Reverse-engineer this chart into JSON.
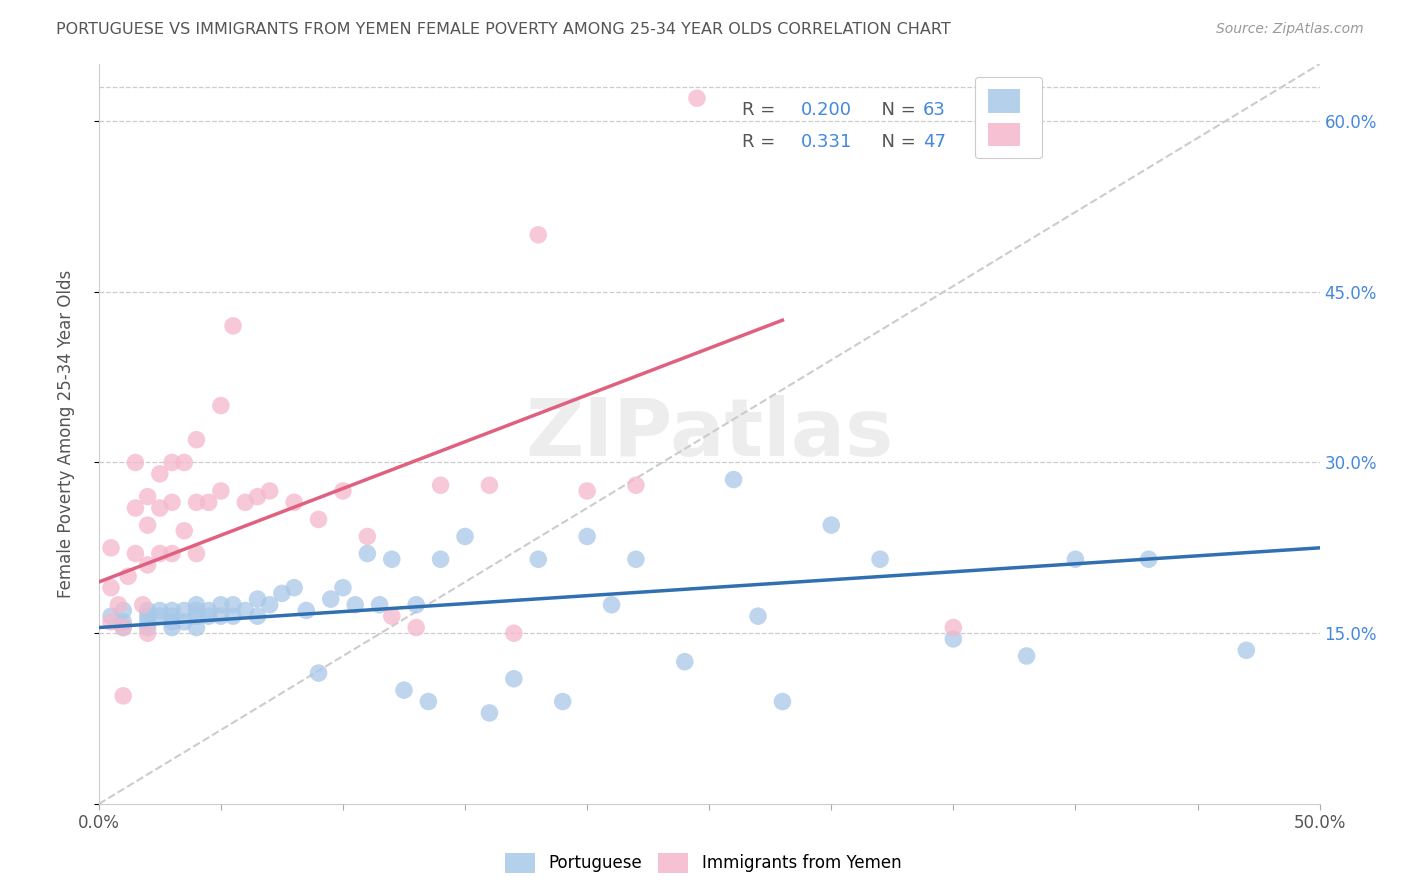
{
  "title": "PORTUGUESE VS IMMIGRANTS FROM YEMEN FEMALE POVERTY AMONG 25-34 YEAR OLDS CORRELATION CHART",
  "source": "Source: ZipAtlas.com",
  "ylabel": "Female Poverty Among 25-34 Year Olds",
  "xlim": [
    0.0,
    0.5
  ],
  "ylim": [
    0.0,
    0.65
  ],
  "xticks": [
    0.0,
    0.05,
    0.1,
    0.15,
    0.2,
    0.25,
    0.3,
    0.35,
    0.4,
    0.45,
    0.5
  ],
  "xticklabels_show": {
    "0.0": "0.0%",
    "0.5": "50.0%"
  },
  "yticks_right_vals": [
    0.15,
    0.3,
    0.45,
    0.6
  ],
  "yticks_right_labels": [
    "15.0%",
    "30.0%",
    "45.0%",
    "60.0%"
  ],
  "blue_R": "0.200",
  "blue_N": "63",
  "pink_R": "0.331",
  "pink_N": "47",
  "blue_scatter_color": "#a8c8e8",
  "pink_scatter_color": "#f5b8cc",
  "blue_line_color": "#3070b0",
  "pink_line_color": "#e06080",
  "dashed_line_color": "#cccccc",
  "watermark": "ZIPatlas",
  "legend_label_blue": "Portuguese",
  "legend_label_pink": "Immigrants from Yemen",
  "blue_scatter_x": [
    0.005,
    0.01,
    0.01,
    0.01,
    0.02,
    0.02,
    0.02,
    0.02,
    0.025,
    0.025,
    0.03,
    0.03,
    0.03,
    0.03,
    0.035,
    0.035,
    0.04,
    0.04,
    0.04,
    0.04,
    0.045,
    0.045,
    0.05,
    0.05,
    0.055,
    0.055,
    0.06,
    0.065,
    0.065,
    0.07,
    0.075,
    0.08,
    0.085,
    0.09,
    0.095,
    0.1,
    0.105,
    0.11,
    0.115,
    0.12,
    0.125,
    0.13,
    0.135,
    0.14,
    0.15,
    0.16,
    0.17,
    0.18,
    0.19,
    0.2,
    0.21,
    0.22,
    0.24,
    0.26,
    0.27,
    0.28,
    0.3,
    0.32,
    0.35,
    0.38,
    0.4,
    0.43,
    0.47
  ],
  "blue_scatter_y": [
    0.165,
    0.16,
    0.155,
    0.17,
    0.155,
    0.165,
    0.17,
    0.16,
    0.165,
    0.17,
    0.155,
    0.16,
    0.165,
    0.17,
    0.16,
    0.17,
    0.155,
    0.165,
    0.17,
    0.175,
    0.17,
    0.165,
    0.165,
    0.175,
    0.165,
    0.175,
    0.17,
    0.165,
    0.18,
    0.175,
    0.185,
    0.19,
    0.17,
    0.115,
    0.18,
    0.19,
    0.175,
    0.22,
    0.175,
    0.215,
    0.1,
    0.175,
    0.09,
    0.215,
    0.235,
    0.08,
    0.11,
    0.215,
    0.09,
    0.235,
    0.175,
    0.215,
    0.125,
    0.285,
    0.165,
    0.09,
    0.245,
    0.215,
    0.145,
    0.13,
    0.215,
    0.215,
    0.135
  ],
  "pink_scatter_x": [
    0.005,
    0.005,
    0.005,
    0.008,
    0.01,
    0.01,
    0.012,
    0.015,
    0.015,
    0.015,
    0.018,
    0.02,
    0.02,
    0.02,
    0.02,
    0.025,
    0.025,
    0.025,
    0.03,
    0.03,
    0.03,
    0.035,
    0.035,
    0.04,
    0.04,
    0.04,
    0.045,
    0.05,
    0.05,
    0.055,
    0.06,
    0.065,
    0.07,
    0.08,
    0.09,
    0.1,
    0.11,
    0.12,
    0.13,
    0.14,
    0.16,
    0.17,
    0.18,
    0.2,
    0.22,
    0.245,
    0.35
  ],
  "pink_scatter_y": [
    0.16,
    0.19,
    0.225,
    0.175,
    0.155,
    0.095,
    0.2,
    0.22,
    0.26,
    0.3,
    0.175,
    0.15,
    0.21,
    0.245,
    0.27,
    0.22,
    0.26,
    0.29,
    0.22,
    0.265,
    0.3,
    0.24,
    0.3,
    0.22,
    0.265,
    0.32,
    0.265,
    0.35,
    0.275,
    0.42,
    0.265,
    0.27,
    0.275,
    0.265,
    0.25,
    0.275,
    0.235,
    0.165,
    0.155,
    0.28,
    0.28,
    0.15,
    0.5,
    0.275,
    0.28,
    0.62,
    0.155
  ],
  "blue_line_x": [
    0.0,
    0.5
  ],
  "blue_line_y": [
    0.155,
    0.225
  ],
  "pink_line_x": [
    0.0,
    0.28
  ],
  "pink_line_y": [
    0.195,
    0.425
  ],
  "diag_line_x": [
    0.0,
    0.5
  ],
  "diag_line_y": [
    0.0,
    0.65
  ]
}
